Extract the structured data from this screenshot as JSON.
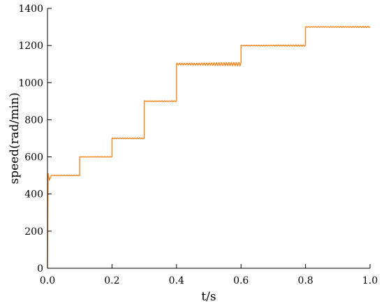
{
  "chart_data": {
    "type": "line",
    "xlabel": "t/s",
    "ylabel": "speed(rad/min)",
    "xlim": [
      0.0,
      1.0
    ],
    "ylim": [
      0,
      1400
    ],
    "x_ticks": [
      "0.0",
      "0.2",
      "0.4",
      "0.6",
      "0.8",
      "1.0"
    ],
    "y_ticks": [
      "0",
      "200",
      "400",
      "600",
      "800",
      "1000",
      "1200",
      "1400"
    ],
    "grid": false,
    "series": [
      {
        "color": "#f5861f",
        "x": [
          0.0,
          0.002,
          0.006,
          0.012,
          0.02,
          0.1,
          0.1,
          0.2,
          0.2,
          0.3,
          0.3,
          0.4,
          0.4,
          0.6,
          0.6,
          0.8,
          0.8,
          1.0
        ],
        "y": [
          0,
          510,
          475,
          500,
          500,
          500,
          600,
          600,
          700,
          700,
          900,
          900,
          1100,
          1100,
          1200,
          1200,
          1300,
          1300
        ],
        "ripple": [
          0,
          0,
          0,
          2,
          3,
          3,
          3,
          3,
          5,
          5,
          5,
          5,
          12,
          12,
          5,
          5,
          4,
          4
        ]
      }
    ]
  }
}
